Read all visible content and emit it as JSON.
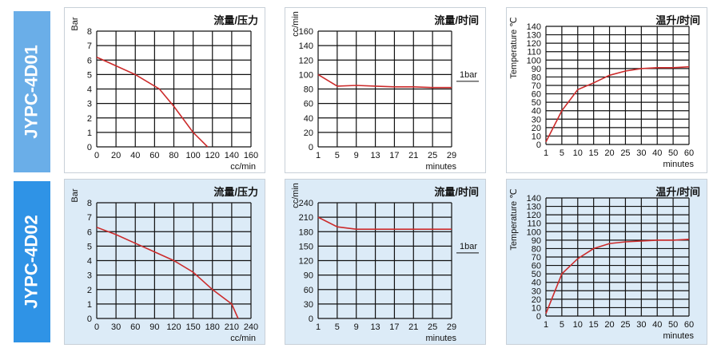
{
  "rows": [
    {
      "label": "JYPC-4D01",
      "color": "#6aaee8",
      "panel_bg": "#ffffff"
    },
    {
      "label": "JYPC-4D02",
      "color": "#2f93e6",
      "panel_bg": "#dcebf7"
    }
  ],
  "colors": {
    "curve": "#cc2b2b",
    "grid": "#111111"
  },
  "chart_data": [
    {
      "id": "4d01-pressure",
      "type": "line",
      "title": "流量/压力",
      "xlabel": "cc/min",
      "ylabel": "Bar",
      "x_ticks": [
        "0",
        "20",
        "40",
        "60",
        "80",
        "100",
        "120",
        "140",
        "160"
      ],
      "y_ticks": [
        "0",
        "1",
        "2",
        "3",
        "4",
        "5",
        "6",
        "7",
        "8"
      ],
      "xlim": [
        0,
        160
      ],
      "ylim": [
        0,
        8
      ],
      "series": [
        {
          "x": [
            0,
            20,
            40,
            65,
            80,
            100,
            115
          ],
          "y": [
            6.2,
            5.6,
            5.0,
            4.0,
            2.8,
            1.0,
            0
          ]
        }
      ]
    },
    {
      "id": "4d01-flow",
      "type": "line",
      "title": "流量/时间",
      "xlabel": "minutes",
      "ylabel": "cc/min",
      "x_ticks": [
        "1",
        "5",
        "9",
        "13",
        "17",
        "21",
        "25",
        "29"
      ],
      "y_ticks": [
        "0",
        "20",
        "40",
        "60",
        "80",
        "100",
        "120",
        "140",
        "160"
      ],
      "xlim": [
        1,
        29
      ],
      "ylim": [
        0,
        160
      ],
      "series": [
        {
          "x": [
            1,
            5,
            9,
            13,
            17,
            21,
            25,
            29
          ],
          "y": [
            100,
            84,
            85,
            84,
            83,
            83,
            82,
            82
          ]
        }
      ],
      "annotation": "1bar"
    },
    {
      "id": "4d01-temp",
      "type": "line",
      "title": "温升/时间",
      "xlabel": "minutes",
      "ylabel": "Temperature ℃",
      "x_ticks": [
        "1",
        "5",
        "10",
        "15",
        "20",
        "25",
        "30",
        "40",
        "50",
        "60"
      ],
      "y_ticks": [
        "0",
        "10",
        "20",
        "30",
        "40",
        "50",
        "60",
        "70",
        "80",
        "90",
        "100",
        "110",
        "120",
        "130",
        "140"
      ],
      "ylim": [
        0,
        140
      ],
      "series": [
        {
          "x": [
            1,
            5,
            10,
            15,
            20,
            25,
            30,
            40,
            50,
            60
          ],
          "y": [
            3,
            40,
            65,
            73,
            82,
            87,
            90,
            91,
            91,
            92
          ]
        }
      ]
    },
    {
      "id": "4d02-pressure",
      "type": "line",
      "title": "流量/压力",
      "xlabel": "cc/min",
      "ylabel": "Bar",
      "x_ticks": [
        "0",
        "30",
        "60",
        "90",
        "120",
        "150",
        "180",
        "210",
        "240"
      ],
      "y_ticks": [
        "0",
        "1",
        "2",
        "3",
        "4",
        "5",
        "6",
        "7",
        "8"
      ],
      "xlim": [
        0,
        240
      ],
      "ylim": [
        0,
        8
      ],
      "series": [
        {
          "x": [
            0,
            30,
            60,
            90,
            120,
            150,
            180,
            210,
            220
          ],
          "y": [
            6.3,
            5.8,
            5.2,
            4.6,
            4.0,
            3.2,
            2.0,
            1.0,
            0
          ]
        }
      ]
    },
    {
      "id": "4d02-flow",
      "type": "line",
      "title": "流量/时间",
      "xlabel": "minutes",
      "ylabel": "cc/min",
      "x_ticks": [
        "1",
        "5",
        "9",
        "13",
        "17",
        "21",
        "25",
        "29"
      ],
      "y_ticks": [
        "0",
        "30",
        "60",
        "90",
        "120",
        "150",
        "180",
        "210",
        "240"
      ],
      "xlim": [
        1,
        29
      ],
      "ylim": [
        0,
        240
      ],
      "series": [
        {
          "x": [
            1,
            5,
            9,
            13,
            17,
            21,
            25,
            29
          ],
          "y": [
            210,
            190,
            185,
            185,
            185,
            185,
            185,
            185
          ]
        }
      ],
      "annotation": "1bar"
    },
    {
      "id": "4d02-temp",
      "type": "line",
      "title": "温升/时间",
      "xlabel": "minutes",
      "ylabel": "Temperature ℃",
      "x_ticks": [
        "1",
        "5",
        "10",
        "15",
        "20",
        "25",
        "30",
        "40",
        "50",
        "60"
      ],
      "y_ticks": [
        "0",
        "10",
        "20",
        "30",
        "40",
        "50",
        "60",
        "70",
        "80",
        "90",
        "100",
        "110",
        "120",
        "130",
        "140"
      ],
      "ylim": [
        0,
        140
      ],
      "series": [
        {
          "x": [
            1,
            5,
            10,
            15,
            20,
            25,
            30,
            40,
            50,
            60
          ],
          "y": [
            3,
            50,
            68,
            80,
            86,
            88,
            89,
            90,
            90,
            91
          ]
        }
      ]
    }
  ]
}
